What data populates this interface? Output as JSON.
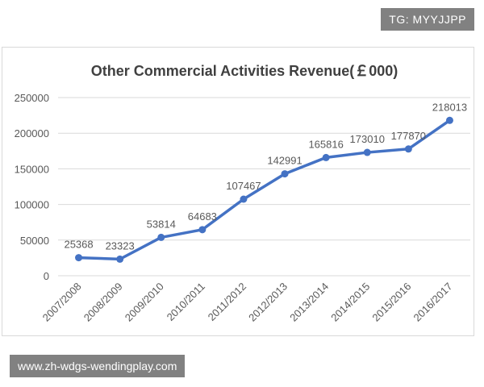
{
  "watermark_top": "TG: MYYJJPP",
  "watermark_bottom": "www.zh-wdgs-wendingplay.com",
  "chart_data": {
    "type": "line",
    "title": "Other Commercial Activities Revenue(￡000)",
    "xlabel": "",
    "ylabel": "",
    "categories": [
      "2007/2008",
      "2008/2009",
      "2009/2010",
      "2010/2011",
      "2011/2012",
      "2012/2013",
      "2013/2014",
      "2014/2015",
      "2015/2016",
      "2016/2017"
    ],
    "series": [
      {
        "values": [
          25368,
          23323,
          53814,
          64683,
          107467,
          142991,
          165816,
          173010,
          177870,
          218013
        ]
      }
    ],
    "ylim": [
      0,
      250000
    ],
    "yticks": [
      "0",
      "50000",
      "100000",
      "150000",
      "200000",
      "250000"
    ],
    "grid": true,
    "legend": "none",
    "colors": {
      "line": "#4472c4",
      "grid": "#d9d9d9",
      "text": "#595959",
      "title": "#404040"
    }
  }
}
